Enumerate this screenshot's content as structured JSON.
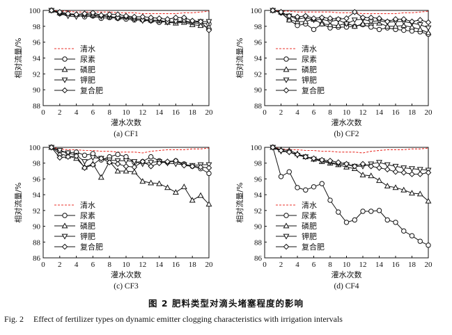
{
  "figure": {
    "caption_zh": "图 2   肥料类型对滴头堵塞程度的影响",
    "caption_en_label": "Fig. 2",
    "caption_en_text": "Effect of fertilizer types on dynamic emitter clogging characteristics with irrigation intervals",
    "colors": {
      "water": "#e8312a",
      "lines": "#111111"
    },
    "markers": {
      "尿素": "circle",
      "磷肥": "triangle-up",
      "钾肥": "triangle-down",
      "复合肥": "diamond",
      "清水": "none"
    }
  },
  "chart_data": [
    {
      "type": "line",
      "title": "(a) CF1",
      "xlabel": "灌水次数",
      "ylabel": "相对流量/%",
      "xlim": [
        0,
        20
      ],
      "ylim": [
        88,
        100
      ],
      "xticks": [
        0,
        2,
        4,
        6,
        8,
        10,
        12,
        14,
        16,
        18,
        20
      ],
      "yticks": [
        88,
        90,
        92,
        94,
        96,
        98,
        100
      ],
      "legend": "left-middle",
      "x": [
        1,
        2,
        3,
        4,
        5,
        6,
        7,
        8,
        9,
        10,
        11,
        12,
        13,
        14,
        15,
        16,
        17,
        18,
        19,
        20
      ],
      "series": [
        {
          "name": "清水",
          "style": "dashed-red",
          "values": [
            100,
            99.9,
            99.9,
            99.8,
            99.8,
            99.8,
            99.8,
            99.8,
            99.7,
            99.7,
            99.7,
            99.6,
            99.6,
            99.6,
            99.6,
            99.6,
            99.7,
            99.7,
            99.8,
            99.9
          ]
        },
        {
          "name": "尿素",
          "marker": "circle",
          "values": [
            100,
            99.6,
            99.5,
            99.4,
            99.2,
            99.3,
            99.0,
            99.1,
            99.0,
            98.9,
            98.8,
            98.8,
            98.7,
            98.5,
            98.6,
            98.5,
            98.6,
            98.4,
            98.4,
            98.3
          ]
        },
        {
          "name": "磷肥",
          "marker": "triangle-up",
          "values": [
            100,
            99.7,
            99.6,
            99.5,
            99.5,
            99.4,
            99.4,
            99.2,
            99.1,
            99.2,
            99.0,
            98.9,
            98.8,
            98.7,
            98.5,
            98.4,
            98.5,
            98.2,
            98.1,
            97.9
          ]
        },
        {
          "name": "钾肥",
          "marker": "triangle-down",
          "values": [
            100,
            99.6,
            99.3,
            99.2,
            99.4,
            99.4,
            99.2,
            99.3,
            99.0,
            99.1,
            98.9,
            98.7,
            98.7,
            98.8,
            98.5,
            98.6,
            98.7,
            98.5,
            98.6,
            98.6
          ]
        },
        {
          "name": "复合肥",
          "marker": "diamond",
          "values": [
            100,
            99.8,
            99.6,
            99.5,
            99.6,
            99.7,
            99.4,
            99.5,
            99.5,
            99.3,
            99.2,
            99.2,
            99.1,
            99.0,
            98.9,
            99.1,
            99.1,
            98.7,
            98.6,
            97.5
          ]
        }
      ]
    },
    {
      "type": "line",
      "title": "(b) CF2",
      "xlabel": "灌水次数",
      "ylabel": "相对流量/%",
      "xlim": [
        0,
        20
      ],
      "ylim": [
        88,
        100
      ],
      "xticks": [
        0,
        2,
        4,
        6,
        8,
        10,
        12,
        14,
        16,
        18,
        20
      ],
      "yticks": [
        88,
        90,
        92,
        94,
        96,
        98,
        100
      ],
      "legend": "left-middle",
      "x": [
        1,
        2,
        3,
        4,
        5,
        6,
        7,
        8,
        9,
        10,
        11,
        12,
        13,
        14,
        15,
        16,
        17,
        18,
        19,
        20
      ],
      "series": [
        {
          "name": "清水",
          "style": "dashed-red",
          "values": [
            100,
            99.9,
            99.9,
            99.8,
            99.8,
            99.8,
            99.8,
            99.8,
            99.7,
            99.7,
            99.7,
            99.6,
            99.6,
            99.6,
            99.6,
            99.6,
            99.7,
            99.7,
            99.8,
            99.9
          ]
        },
        {
          "name": "尿素",
          "marker": "circle",
          "values": [
            100,
            99.7,
            98.8,
            98.1,
            98.3,
            97.6,
            98.3,
            97.8,
            97.9,
            97.9,
            98.0,
            98.2,
            97.9,
            97.6,
            97.8,
            97.6,
            97.5,
            97.4,
            97.3,
            97.0
          ]
        },
        {
          "name": "磷肥",
          "marker": "triangle-up",
          "values": [
            100,
            99.8,
            98.8,
            98.6,
            98.6,
            98.9,
            98.3,
            98.2,
            98.1,
            98.4,
            98.0,
            98.3,
            98.4,
            98.4,
            98.0,
            98.0,
            98.1,
            97.9,
            97.6,
            97.2
          ]
        },
        {
          "name": "钾肥",
          "marker": "triangle-down",
          "values": [
            100,
            99.7,
            99.3,
            98.9,
            99.1,
            98.8,
            98.9,
            98.6,
            98.8,
            98.3,
            98.8,
            98.9,
            98.6,
            98.7,
            98.5,
            98.6,
            98.6,
            98.4,
            98.2,
            97.8
          ]
        },
        {
          "name": "复合肥",
          "marker": "diamond",
          "values": [
            100,
            99.8,
            99.3,
            99.2,
            99.3,
            99.0,
            99.1,
            99.0,
            98.9,
            99.0,
            99.8,
            99.1,
            99.1,
            99.0,
            98.6,
            98.9,
            98.9,
            98.6,
            98.8,
            98.5
          ]
        }
      ]
    },
    {
      "type": "line",
      "title": "(c) CF3",
      "xlabel": "灌水次数",
      "ylabel": "相对流量/%",
      "xlim": [
        0,
        20
      ],
      "ylim": [
        86,
        100
      ],
      "xticks": [
        0,
        2,
        4,
        6,
        8,
        10,
        12,
        14,
        16,
        18,
        20
      ],
      "yticks": [
        86,
        88,
        90,
        92,
        94,
        96,
        98,
        100
      ],
      "legend": "left-bottom",
      "x": [
        1,
        2,
        3,
        4,
        5,
        6,
        7,
        8,
        9,
        10,
        11,
        12,
        13,
        14,
        15,
        16,
        17,
        18,
        19,
        20
      ],
      "series": [
        {
          "name": "清水",
          "style": "dashed-red",
          "values": [
            100,
            99.8,
            99.7,
            99.7,
            99.6,
            99.6,
            99.5,
            99.5,
            99.4,
            99.4,
            99.4,
            99.3,
            99.5,
            99.6,
            99.7,
            99.7,
            99.7,
            99.8,
            99.8,
            99.9
          ]
        },
        {
          "name": "尿素",
          "marker": "circle",
          "values": [
            100,
            99.5,
            99.3,
            99.4,
            99.0,
            99.2,
            98.4,
            98.8,
            99.1,
            98.8,
            98.1,
            98.2,
            98.8,
            98.3,
            98.1,
            98.3,
            97.9,
            97.6,
            97.3,
            96.7
          ]
        },
        {
          "name": "磷肥",
          "marker": "triangle-up",
          "values": [
            100,
            99.2,
            98.9,
            98.6,
            97.5,
            97.9,
            96.2,
            98.2,
            97.0,
            97.0,
            96.9,
            95.7,
            95.5,
            95.4,
            94.9,
            94.3,
            95.0,
            93.3,
            93.9,
            92.8
          ]
        },
        {
          "name": "钾肥",
          "marker": "triangle-down",
          "values": [
            100,
            99.6,
            99.3,
            99.0,
            98.2,
            98.7,
            98.6,
            98.4,
            98.3,
            98.3,
            98.2,
            97.9,
            98.1,
            98.2,
            98.0,
            97.9,
            97.8,
            97.7,
            97.8,
            97.8
          ]
        },
        {
          "name": "复合肥",
          "marker": "diamond",
          "values": [
            100,
            98.7,
            98.8,
            98.9,
            97.4,
            97.8,
            98.6,
            98.1,
            97.9,
            97.6,
            97.5,
            98.2,
            97.6,
            98.0,
            98.2,
            98.3,
            97.7,
            97.6,
            97.5,
            97.4
          ]
        }
      ]
    },
    {
      "type": "line",
      "title": "(d) CF4",
      "xlabel": "灌水次数",
      "ylabel": "相对流量/%",
      "xlim": [
        0,
        20
      ],
      "ylim": [
        86,
        100
      ],
      "xticks": [
        0,
        2,
        4,
        6,
        8,
        10,
        12,
        14,
        16,
        18,
        20
      ],
      "yticks": [
        86,
        88,
        90,
        92,
        94,
        96,
        98,
        100
      ],
      "legend": "left-bottom",
      "x": [
        1,
        2,
        3,
        4,
        5,
        6,
        7,
        8,
        9,
        10,
        11,
        12,
        13,
        14,
        15,
        16,
        17,
        18,
        19,
        20
      ],
      "series": [
        {
          "name": "清水",
          "style": "dashed-red",
          "values": [
            100,
            99.8,
            99.7,
            99.7,
            99.6,
            99.6,
            99.5,
            99.5,
            99.4,
            99.4,
            99.4,
            99.3,
            99.5,
            99.6,
            99.7,
            99.7,
            99.7,
            99.8,
            99.8,
            99.9
          ]
        },
        {
          "name": "尿素",
          "marker": "circle",
          "values": [
            100,
            96.3,
            96.9,
            94.9,
            94.6,
            95.0,
            95.4,
            93.3,
            91.8,
            90.5,
            90.8,
            91.9,
            91.9,
            92.0,
            90.8,
            90.5,
            89.4,
            88.8,
            88.1,
            87.6
          ]
        },
        {
          "name": "磷肥",
          "marker": "triangle-up",
          "values": [
            100,
            99.7,
            99.6,
            99.2,
            98.8,
            98.5,
            98.2,
            98.0,
            97.8,
            97.5,
            97.3,
            96.5,
            96.4,
            95.8,
            95.1,
            94.9,
            94.6,
            94.2,
            94.1,
            93.2
          ]
        },
        {
          "name": "钾肥",
          "marker": "triangle-down",
          "values": [
            100,
            99.5,
            99.4,
            99.0,
            98.8,
            98.5,
            98.3,
            98.1,
            97.9,
            97.8,
            97.6,
            97.6,
            97.9,
            98.1,
            97.8,
            97.6,
            97.4,
            97.3,
            97.2,
            97.1
          ]
        },
        {
          "name": "复合肥",
          "marker": "diamond",
          "values": [
            100,
            99.6,
            99.4,
            99.1,
            98.8,
            98.6,
            98.4,
            98.3,
            98.1,
            97.9,
            97.6,
            97.9,
            97.6,
            97.4,
            97.2,
            96.9,
            96.8,
            96.6,
            96.6,
            96.8
          ]
        }
      ]
    }
  ]
}
